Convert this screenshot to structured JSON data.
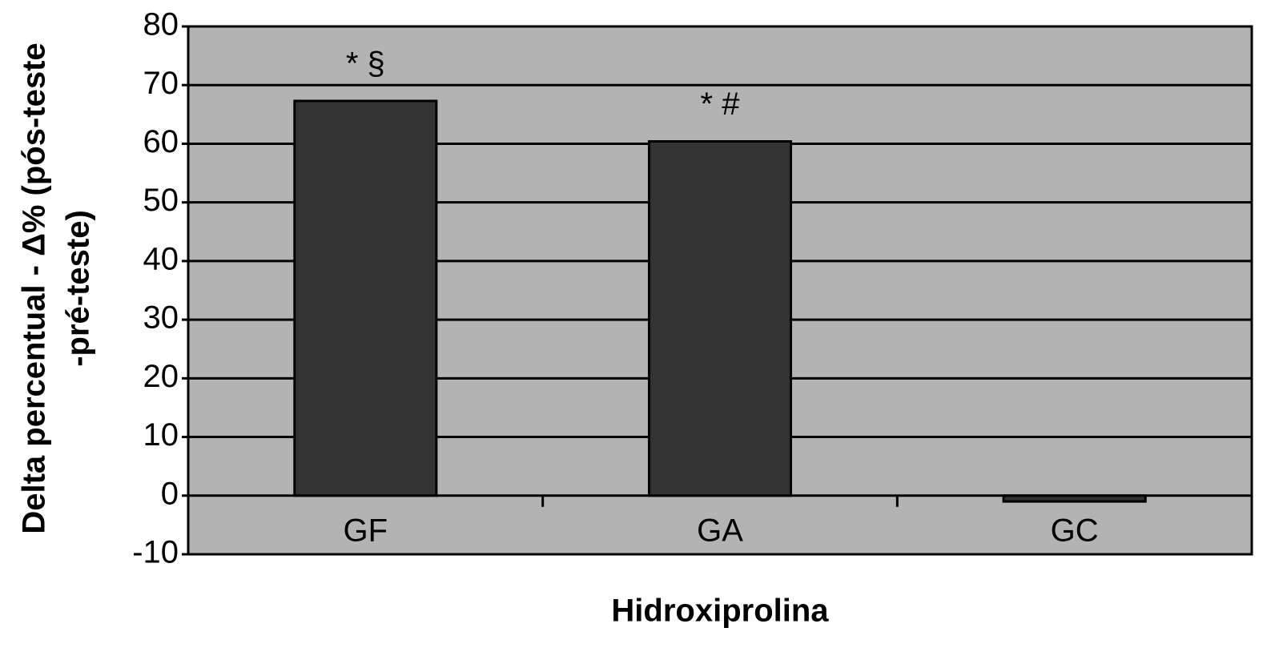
{
  "chart_data": {
    "type": "bar",
    "ylabel": [
      "Delta percentual - Δ% (pós-teste",
      "-pré-teste)"
    ],
    "xlabel": "Hidroxiprolina",
    "categories": [
      "GF",
      "GA",
      "GC"
    ],
    "values": [
      67.3,
      60.4,
      -1
    ],
    "annotations": [
      "* §",
      "* #",
      null
    ],
    "color": "#333333",
    "background": "#b3b3b3",
    "ylim": [
      -10,
      80
    ],
    "yticks": [
      -10,
      0,
      10,
      20,
      30,
      40,
      50,
      60,
      70,
      80
    ],
    "grid": true
  }
}
